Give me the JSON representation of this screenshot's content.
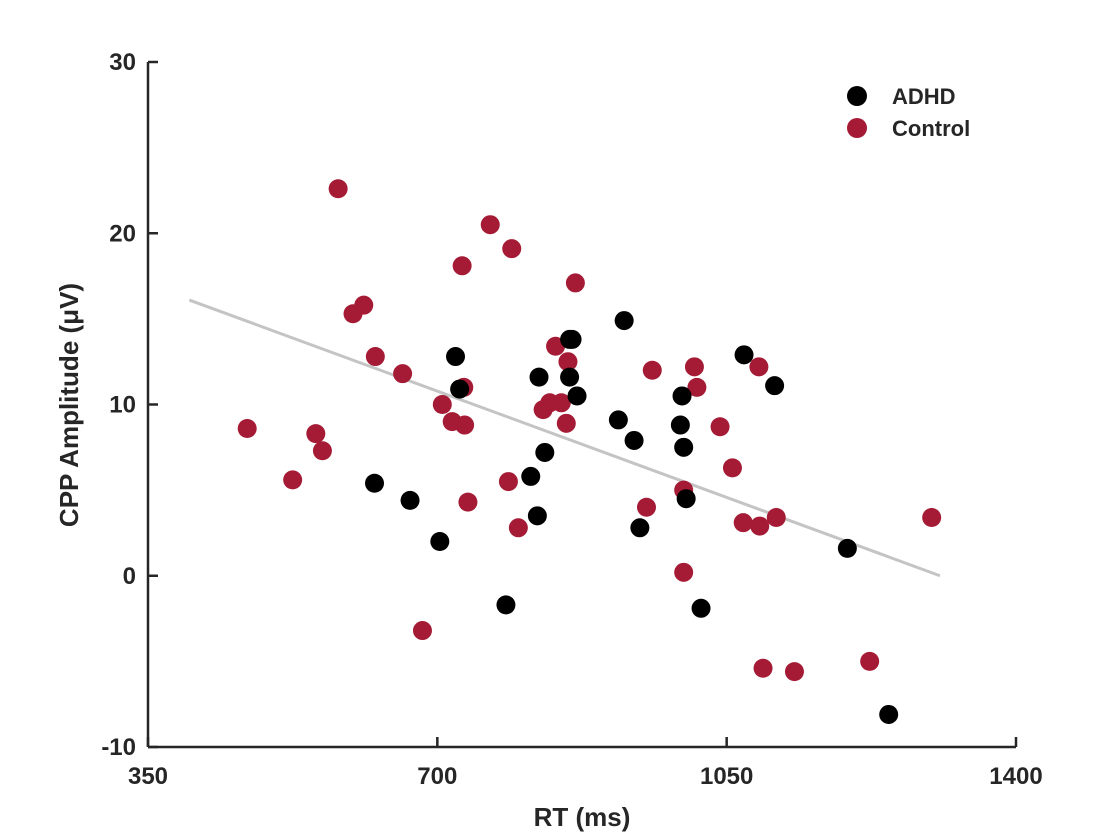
{
  "chart_data": {
    "type": "scatter",
    "title": "",
    "xlabel": "RT (ms)",
    "ylabel": "CPP Amplitude (μV)",
    "xlim": [
      350,
      1400
    ],
    "ylim": [
      -10,
      30
    ],
    "xticks": [
      "350",
      "700",
      "1050",
      "1400"
    ],
    "yticks": [
      "-10",
      "0",
      "10",
      "20",
      "30"
    ],
    "grid": false,
    "legend_position": "top-right",
    "regression_line": {
      "x": [
        400,
        1308
      ],
      "y": [
        16.1,
        0.0
      ],
      "color": "#c4c4c4"
    },
    "series": [
      {
        "name": "ADHD",
        "color": "#000000",
        "x": [
          624,
          667,
          703,
          722,
          727,
          783,
          813,
          821,
          823,
          830,
          860,
          860,
          863,
          869,
          919,
          926,
          938,
          945,
          994,
          996,
          998,
          1001,
          1019,
          1071,
          1108,
          1196,
          1246
        ],
        "y": [
          5.4,
          4.4,
          2.0,
          12.8,
          10.9,
          -1.7,
          5.8,
          3.5,
          11.6,
          7.2,
          13.8,
          11.6,
          13.8,
          10.5,
          9.1,
          14.9,
          7.9,
          2.8,
          8.8,
          10.5,
          7.5,
          4.5,
          -1.9,
          12.9,
          11.1,
          1.6,
          -8.1
        ]
      },
      {
        "name": "Control",
        "color": "#a51b35",
        "x": [
          470,
          525,
          553,
          561,
          580,
          598,
          611,
          625,
          658,
          682,
          706,
          718,
          730,
          732,
          733,
          737,
          764,
          786,
          790,
          798,
          828,
          836,
          843,
          850,
          856,
          858,
          867,
          953,
          960,
          998,
          998,
          1011,
          1014,
          1042,
          1057,
          1070,
          1089,
          1090,
          1094,
          1110,
          1132,
          1223,
          1298
        ],
        "y": [
          8.6,
          5.6,
          8.3,
          7.3,
          22.6,
          15.3,
          15.8,
          12.8,
          11.8,
          -3.2,
          10.0,
          9.0,
          18.1,
          11.0,
          8.8,
          4.3,
          20.5,
          5.5,
          19.1,
          2.8,
          9.7,
          10.1,
          13.4,
          10.1,
          8.9,
          12.5,
          17.1,
          4.0,
          12.0,
          0.2,
          5.0,
          12.2,
          11.0,
          8.7,
          6.3,
          3.1,
          12.2,
          2.9,
          -5.4,
          3.4,
          -5.6,
          -5.0,
          3.4
        ]
      }
    ]
  }
}
